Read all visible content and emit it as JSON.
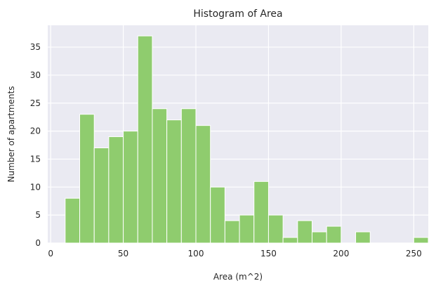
{
  "chart_data": {
    "type": "bar",
    "title": "Histogram of Area",
    "xlabel": "Area (m^2)",
    "ylabel": "Number of apartments",
    "xlim": [
      -2,
      260
    ],
    "ylim": [
      0,
      38.9
    ],
    "x_ticks": [
      0,
      50,
      100,
      150,
      200,
      250
    ],
    "y_ticks": [
      0,
      5,
      10,
      15,
      20,
      25,
      30,
      35
    ],
    "grid": true,
    "bar_color": "#8fcc6e",
    "plot_background": "#eaeaf2",
    "bins": [
      {
        "start": 10,
        "end": 20,
        "count": 8
      },
      {
        "start": 20,
        "end": 30,
        "count": 23
      },
      {
        "start": 30,
        "end": 40,
        "count": 17
      },
      {
        "start": 40,
        "end": 50,
        "count": 19
      },
      {
        "start": 50,
        "end": 60,
        "count": 20
      },
      {
        "start": 60,
        "end": 70,
        "count": 37
      },
      {
        "start": 70,
        "end": 80,
        "count": 24
      },
      {
        "start": 80,
        "end": 90,
        "count": 22
      },
      {
        "start": 90,
        "end": 100,
        "count": 24
      },
      {
        "start": 100,
        "end": 110,
        "count": 21
      },
      {
        "start": 110,
        "end": 120,
        "count": 10
      },
      {
        "start": 120,
        "end": 130,
        "count": 4
      },
      {
        "start": 130,
        "end": 140,
        "count": 5
      },
      {
        "start": 140,
        "end": 150,
        "count": 11
      },
      {
        "start": 150,
        "end": 160,
        "count": 5
      },
      {
        "start": 160,
        "end": 170,
        "count": 1
      },
      {
        "start": 170,
        "end": 180,
        "count": 4
      },
      {
        "start": 180,
        "end": 190,
        "count": 2
      },
      {
        "start": 190,
        "end": 200,
        "count": 3
      },
      {
        "start": 200,
        "end": 210,
        "count": 0
      },
      {
        "start": 210,
        "end": 220,
        "count": 2
      },
      {
        "start": 220,
        "end": 230,
        "count": 0
      },
      {
        "start": 230,
        "end": 240,
        "count": 0
      },
      {
        "start": 240,
        "end": 250,
        "count": 0
      },
      {
        "start": 250,
        "end": 260,
        "count": 1
      }
    ]
  }
}
